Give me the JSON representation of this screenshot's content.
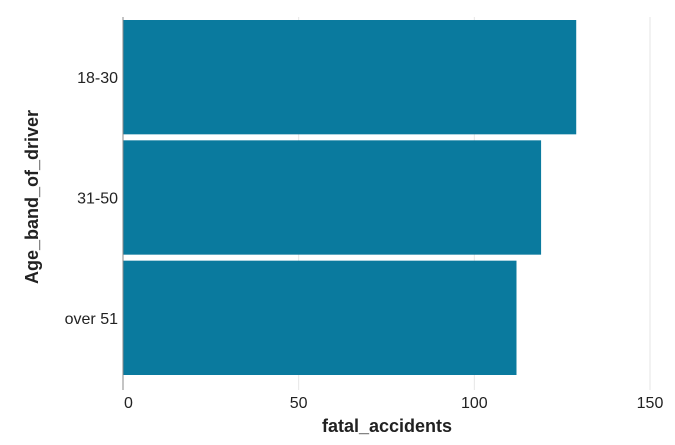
{
  "chart_data": {
    "type": "bar",
    "orientation": "horizontal",
    "categories": [
      "18-30",
      "31-50",
      "over 51"
    ],
    "values": [
      129,
      119,
      112
    ],
    "xlabel": "fatal_accidents",
    "ylabel": "Age_band_of_driver",
    "xlim": [
      0,
      150
    ],
    "xticks": [
      0,
      50,
      100,
      150
    ],
    "grid": "vertical",
    "bar_color": "#0a7a9e"
  }
}
